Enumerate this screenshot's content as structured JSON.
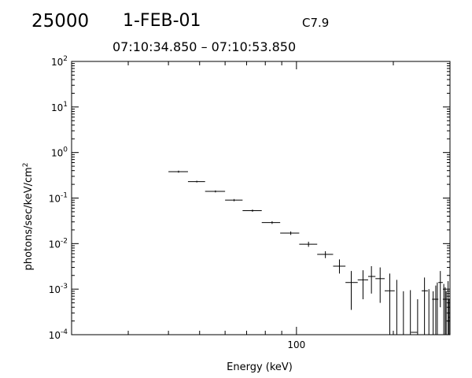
{
  "header": {
    "id": "25000",
    "date": "1-FEB-01",
    "class": "C7.9",
    "time_range": "07:10:34.850 – 07:10:53.850"
  },
  "chart_data": {
    "type": "scatter",
    "title": "",
    "xlabel": "Energy (keV)",
    "ylabel": "photons/sec/keV/cm²",
    "xscale": "log",
    "yscale": "log",
    "xlim": [
      20,
      300
    ],
    "ylim": [
      0.0001,
      100
    ],
    "x_tick_labels": [
      {
        "value": 100,
        "label": "100"
      }
    ],
    "y_tick_labels": [
      {
        "base": "10",
        "exp": "2",
        "value": 100
      },
      {
        "base": "10",
        "exp": "1",
        "value": 10
      },
      {
        "base": "10",
        "exp": "0",
        "value": 1
      },
      {
        "base": "10",
        "exp": "-1",
        "value": 0.1
      },
      {
        "base": "10",
        "exp": "-2",
        "value": 0.01
      },
      {
        "base": "10",
        "exp": "-3",
        "value": 0.001
      },
      {
        "base": "10",
        "exp": "-4",
        "value": 0.0001
      }
    ],
    "grid": false,
    "legend": "none",
    "points": [
      {
        "x": 43,
        "x_lo": 40,
        "x_hi": 46,
        "y": 0.38,
        "y_lo": 0.36,
        "y_hi": 0.4
      },
      {
        "x": 49,
        "x_lo": 46,
        "x_hi": 52,
        "y": 0.23,
        "y_lo": 0.22,
        "y_hi": 0.24
      },
      {
        "x": 56,
        "x_lo": 52,
        "x_hi": 60,
        "y": 0.14,
        "y_lo": 0.133,
        "y_hi": 0.147
      },
      {
        "x": 64,
        "x_lo": 60,
        "x_hi": 68,
        "y": 0.09,
        "y_lo": 0.085,
        "y_hi": 0.095
      },
      {
        "x": 73,
        "x_lo": 68,
        "x_hi": 78,
        "y": 0.053,
        "y_lo": 0.05,
        "y_hi": 0.056
      },
      {
        "x": 84,
        "x_lo": 78,
        "x_hi": 89,
        "y": 0.029,
        "y_lo": 0.027,
        "y_hi": 0.031
      },
      {
        "x": 96,
        "x_lo": 89,
        "x_hi": 102,
        "y": 0.017,
        "y_lo": 0.0155,
        "y_hi": 0.0185
      },
      {
        "x": 109,
        "x_lo": 102,
        "x_hi": 116,
        "y": 0.0097,
        "y_lo": 0.0085,
        "y_hi": 0.011
      },
      {
        "x": 123,
        "x_lo": 116,
        "x_hi": 130,
        "y": 0.0058,
        "y_lo": 0.0048,
        "y_hi": 0.0068
      },
      {
        "x": 136,
        "x_lo": 130,
        "x_hi": 142,
        "y": 0.0032,
        "y_lo": 0.0022,
        "y_hi": 0.0045
      },
      {
        "x": 148,
        "x_lo": 142,
        "x_hi": 155,
        "y": 0.0014,
        "y_lo": 0.00035,
        "y_hi": 0.0025
      },
      {
        "x": 161,
        "x_lo": 155,
        "x_hi": 167,
        "y": 0.0016,
        "y_lo": 0.0006,
        "y_hi": 0.0026
      },
      {
        "x": 171,
        "x_lo": 167,
        "x_hi": 176,
        "y": 0.0019,
        "y_lo": 0.0008,
        "y_hi": 0.0032
      },
      {
        "x": 182,
        "x_lo": 176,
        "x_hi": 188,
        "y": 0.0017,
        "y_lo": 0.0005,
        "y_hi": 0.003
      },
      {
        "x": 195,
        "x_lo": 188,
        "x_hi": 202,
        "y": 0.00092,
        "y_lo": 0.0001,
        "y_hi": 0.0022
      },
      {
        "x": 250,
        "x_lo": 245,
        "x_hi": 256,
        "y": 0.00092,
        "y_lo": 0.0001,
        "y_hi": 0.0018
      },
      {
        "x": 271,
        "x_lo": 264,
        "x_hi": 276,
        "y": 0.0006,
        "y_lo": 0.0001,
        "y_hi": 0.0012
      },
      {
        "x": 280,
        "x_lo": 276,
        "x_hi": 285,
        "y": 0.0014,
        "y_lo": 0.0004,
        "y_hi": 0.0025
      },
      {
        "x": 290,
        "x_lo": 285,
        "x_hi": 294,
        "y": 0.0006,
        "y_lo": 0.0001,
        "y_hi": 0.0011
      },
      {
        "x": 296,
        "x_lo": 293,
        "x_hi": 299,
        "y": 0.0002,
        "y_lo": 0.0001,
        "y_hi": 0.0015
      },
      {
        "x": 298,
        "x_lo": 296,
        "x_hi": 300,
        "y": 0.00024,
        "y_lo": 0.0001,
        "y_hi": 0.0006
      },
      {
        "x": 300,
        "x_lo": 299,
        "x_hi": 300,
        "y": 0.00058,
        "y_lo": 0.0001,
        "y_hi": 0.0012
      }
    ],
    "upper_limit_bars": [
      {
        "x": 205,
        "y_lo": 0.0001,
        "y_hi": 0.0016
      },
      {
        "x": 215,
        "y_lo": 0.0001,
        "y_hi": 0.0009
      },
      {
        "x": 226,
        "y_lo": 0.0001,
        "y_hi": 0.00095
      },
      {
        "x": 238,
        "y_lo": 0.0001,
        "y_hi": 0.0006
      },
      {
        "x": 258,
        "y_lo": 0.0001,
        "y_hi": 0.001
      },
      {
        "x": 266,
        "y_lo": 0.0001,
        "y_hi": 0.0009
      },
      {
        "x": 274,
        "y_lo": 0.0001,
        "y_hi": 0.0014
      },
      {
        "x": 287,
        "y_lo": 0.0001,
        "y_hi": 0.0013
      },
      {
        "x": 292,
        "y_lo": 0.0001,
        "y_hi": 0.0009
      }
    ],
    "low_marker": {
      "x": 232,
      "y": 0.0001
    }
  }
}
